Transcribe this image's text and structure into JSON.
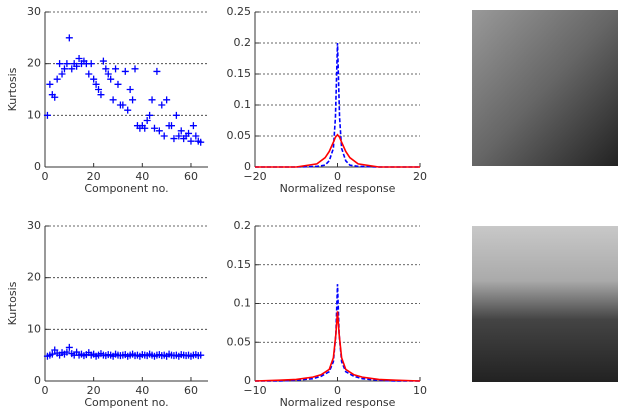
{
  "chart_data": [
    {
      "type": "scatter",
      "ylabel": "Kurtosis",
      "xlabel": "Component no.",
      "color": "#0000ff",
      "grid": true,
      "xlim": [
        0,
        67
      ],
      "xticks": [
        0,
        20,
        40,
        60
      ],
      "ylim": [
        0,
        30
      ],
      "yticks": [
        0,
        10,
        20,
        30
      ],
      "x": [
        1,
        2,
        3,
        4,
        5,
        6,
        7,
        8,
        9,
        10,
        11,
        12,
        13,
        14,
        15,
        16,
        17,
        18,
        19,
        20,
        21,
        22,
        23,
        24,
        25,
        26,
        27,
        28,
        29,
        30,
        31,
        32,
        33,
        34,
        35,
        36,
        37,
        38,
        39,
        40,
        41,
        42,
        43,
        44,
        45,
        46,
        47,
        48,
        49,
        50,
        51,
        52,
        53,
        54,
        55,
        56,
        57,
        58,
        59,
        60,
        61,
        62,
        63,
        64
      ],
      "values": [
        10,
        16,
        14,
        13.5,
        17,
        20,
        18,
        19,
        20,
        25,
        19,
        20,
        19.5,
        21,
        20,
        20.5,
        20,
        18,
        20,
        17,
        16,
        15,
        14,
        20.5,
        19,
        18,
        17,
        13,
        19,
        16,
        12,
        12,
        18.5,
        11,
        15,
        13,
        19,
        8,
        7.5,
        8,
        7.5,
        9,
        10,
        13,
        7.5,
        18.5,
        7,
        12,
        6,
        13,
        8,
        8,
        5.5,
        10,
        6,
        7,
        5.5,
        6,
        6.5,
        5,
        8,
        6,
        5,
        4.8
      ]
    },
    {
      "type": "line",
      "xlabel": "Normalized response",
      "grid": true,
      "xlim": [
        -20,
        20
      ],
      "xticks": [
        {
          "value": -20,
          "label": "−20"
        },
        0,
        20
      ],
      "ylim": [
        0,
        0.25
      ],
      "yticks": [
        0,
        0.05,
        0.1,
        0.15,
        0.2,
        0.25
      ],
      "x": [
        -20,
        -15,
        -10,
        -5,
        -3,
        -2,
        -1,
        -0.5,
        0,
        0.5,
        1,
        2,
        3,
        5,
        10,
        15,
        20
      ],
      "series": [
        {
          "color": "#0000ff",
          "dash": true,
          "values": [
            0,
            0,
            0,
            0.001,
            0.003,
            0.01,
            0.03,
            0.08,
            0.2,
            0.08,
            0.03,
            0.01,
            0.003,
            0.001,
            0,
            0,
            0
          ]
        },
        {
          "color": "#ff0000",
          "dash": false,
          "values": [
            0,
            0,
            0,
            0.005,
            0.015,
            0.025,
            0.04,
            0.048,
            0.052,
            0.048,
            0.04,
            0.025,
            0.015,
            0.005,
            0,
            0,
            0
          ]
        }
      ]
    },
    {
      "type": "scatter",
      "ylabel": "Kurtosis",
      "xlabel": "Component no.",
      "color": "#0000ff",
      "grid": true,
      "xlim": [
        0,
        67
      ],
      "xticks": [
        0,
        20,
        40,
        60
      ],
      "ylim": [
        0,
        30
      ],
      "yticks": [
        0,
        10,
        20,
        30
      ],
      "x": [
        1,
        2,
        3,
        4,
        5,
        6,
        7,
        8,
        9,
        10,
        11,
        12,
        13,
        14,
        15,
        16,
        17,
        18,
        19,
        20,
        21,
        22,
        23,
        24,
        25,
        26,
        27,
        28,
        29,
        30,
        31,
        32,
        33,
        34,
        35,
        36,
        37,
        38,
        39,
        40,
        41,
        42,
        43,
        44,
        45,
        46,
        47,
        48,
        49,
        50,
        51,
        52,
        53,
        54,
        55,
        56,
        57,
        58,
        59,
        60,
        61,
        62,
        63,
        64
      ],
      "values": [
        4.8,
        5,
        5.2,
        6,
        5.4,
        5,
        5.5,
        5.2,
        5.6,
        6.5,
        5.3,
        5,
        5.6,
        5,
        5.2,
        4.9,
        5.1,
        5.5,
        5,
        5.2,
        4.8,
        5,
        5.3,
        5,
        4.9,
        5.1,
        5,
        4.8,
        5.2,
        5,
        4.9,
        5,
        5.1,
        4.8,
        5,
        5.2,
        4.9,
        5,
        4.8,
        5.1,
        5,
        4.9,
        5.2,
        5,
        4.8,
        5,
        5.1,
        4.9,
        5,
        4.8,
        5.2,
        5,
        4.9,
        5,
        4.8,
        5.1,
        5,
        4.9,
        5,
        4.8,
        5,
        5.1,
        4.9,
        5
      ]
    },
    {
      "type": "line",
      "xlabel": "Normalized response",
      "grid": true,
      "xlim": [
        -10,
        10
      ],
      "xticks": [
        {
          "value": -10,
          "label": "−10"
        },
        0,
        10
      ],
      "ylim": [
        0,
        0.2
      ],
      "yticks": [
        0,
        0.05,
        0.1,
        0.15,
        0.2
      ],
      "x": [
        -10,
        -7,
        -5,
        -3,
        -2,
        -1,
        -0.5,
        -0.2,
        0,
        0.2,
        0.5,
        1,
        2,
        3,
        5,
        7,
        10
      ],
      "series": [
        {
          "color": "#0000ff",
          "dash": true,
          "values": [
            0,
            0,
            0.001,
            0.003,
            0.006,
            0.012,
            0.025,
            0.06,
            0.125,
            0.06,
            0.025,
            0.012,
            0.006,
            0.003,
            0.001,
            0,
            0
          ]
        },
        {
          "color": "#ff0000",
          "dash": false,
          "values": [
            0,
            0.001,
            0.002,
            0.005,
            0.008,
            0.015,
            0.03,
            0.06,
            0.09,
            0.06,
            0.03,
            0.015,
            0.008,
            0.005,
            0.002,
            0.001,
            0
          ]
        }
      ]
    }
  ]
}
